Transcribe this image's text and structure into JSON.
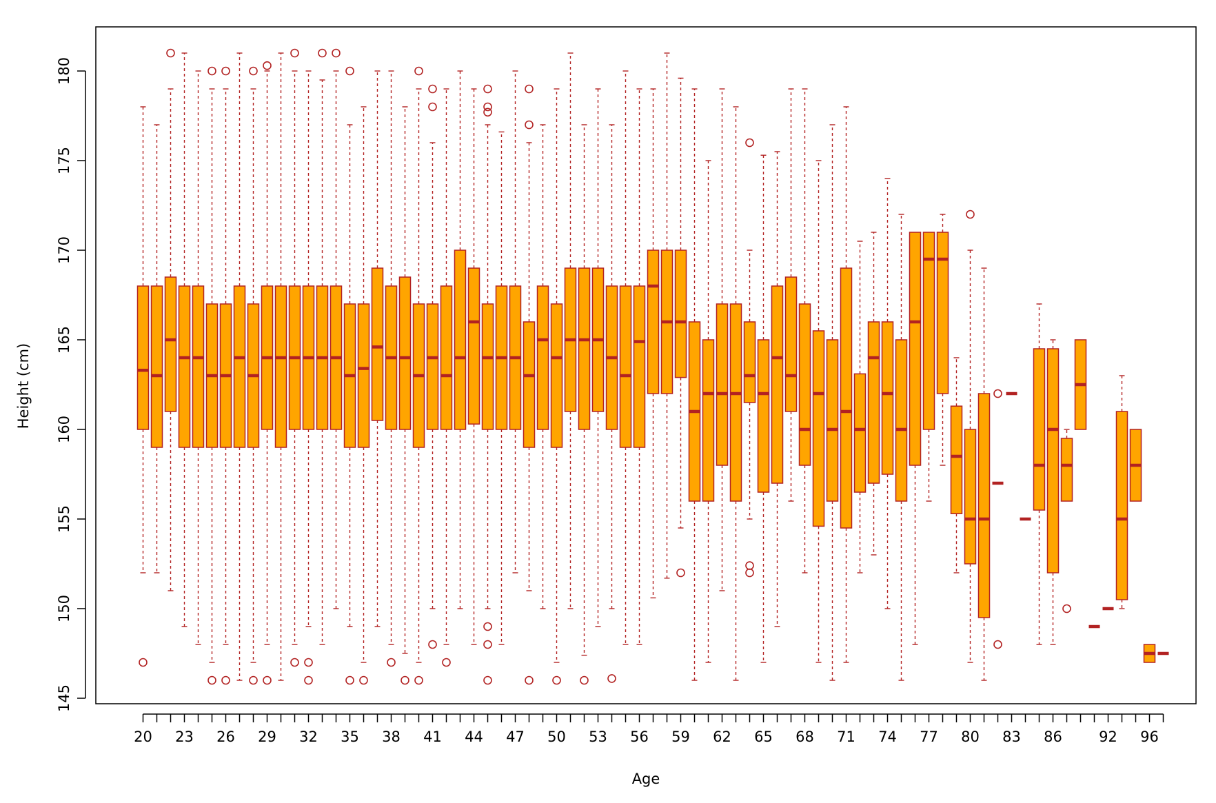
{
  "colors": {
    "box_fill": "#FFA500",
    "box_border": "#B22222",
    "median": "#B22222",
    "whisker": "#B22222",
    "outlier": "#B22222",
    "axis": "#000000"
  },
  "chart_data": {
    "type": "boxplot",
    "title": "",
    "xlabel": "Age",
    "ylabel": "Height (cm)",
    "ylim": [
      145,
      182.4
    ],
    "yticks": [
      145,
      150,
      155,
      160,
      165,
      170,
      175,
      180
    ],
    "xtick_labels": [
      "20",
      "23",
      "26",
      "29",
      "32",
      "35",
      "38",
      "41",
      "44",
      "47",
      "50",
      "53",
      "56",
      "59",
      "62",
      "65",
      "68",
      "71",
      "74",
      "77",
      "80",
      "83",
      "86",
      "92",
      "96"
    ],
    "grid": false,
    "legend": "none",
    "categories": [
      "20",
      "21",
      "22",
      "23",
      "24",
      "25",
      "26",
      "27",
      "28",
      "29",
      "30",
      "31",
      "32",
      "33",
      "34",
      "35",
      "36",
      "37",
      "38",
      "39",
      "40",
      "41",
      "42",
      "43",
      "44",
      "45",
      "46",
      "47",
      "48",
      "49",
      "50",
      "51",
      "52",
      "53",
      "54",
      "55",
      "56",
      "57",
      "58",
      "59",
      "60",
      "61",
      "62",
      "63",
      "64",
      "65",
      "66",
      "67",
      "68",
      "69",
      "70",
      "71",
      "72",
      "73",
      "74",
      "75",
      "76",
      "77",
      "78",
      "79",
      "80",
      "81",
      "82",
      "83",
      "84",
      "85",
      "86",
      "87",
      "88",
      "90",
      "92",
      "93",
      "94",
      "96",
      "97"
    ],
    "boxes": [
      {
        "age": "20",
        "whislo": 152,
        "q1": 160,
        "med": 163.3,
        "q3": 168,
        "whishi": 178,
        "fliers": [
          147
        ]
      },
      {
        "age": "21",
        "whislo": 152,
        "q1": 159,
        "med": 163,
        "q3": 168,
        "whishi": 177,
        "fliers": []
      },
      {
        "age": "22",
        "whislo": 151,
        "q1": 161,
        "med": 165,
        "q3": 168.5,
        "whishi": 179,
        "fliers": [
          181
        ]
      },
      {
        "age": "23",
        "whislo": 149,
        "q1": 159,
        "med": 164,
        "q3": 168,
        "whishi": 181,
        "fliers": []
      },
      {
        "age": "24",
        "whislo": 148,
        "q1": 159,
        "med": 164,
        "q3": 168,
        "whishi": 180,
        "fliers": []
      },
      {
        "age": "25",
        "whislo": 147,
        "q1": 159,
        "med": 163,
        "q3": 167,
        "whishi": 179,
        "fliers": [
          146,
          180
        ]
      },
      {
        "age": "26",
        "whislo": 148,
        "q1": 159,
        "med": 163,
        "q3": 167,
        "whishi": 179,
        "fliers": [
          146,
          180
        ]
      },
      {
        "age": "27",
        "whislo": 146,
        "q1": 159,
        "med": 164,
        "q3": 168,
        "whishi": 181,
        "fliers": []
      },
      {
        "age": "28",
        "whislo": 147,
        "q1": 159,
        "med": 163,
        "q3": 167,
        "whishi": 179,
        "fliers": [
          146,
          180
        ]
      },
      {
        "age": "29",
        "whislo": 148,
        "q1": 160,
        "med": 164,
        "q3": 168,
        "whishi": 180,
        "fliers": [
          146,
          180.3
        ]
      },
      {
        "age": "30",
        "whislo": 146,
        "q1": 159,
        "med": 164,
        "q3": 168,
        "whishi": 181,
        "fliers": []
      },
      {
        "age": "31",
        "whislo": 148,
        "q1": 160,
        "med": 164,
        "q3": 168,
        "whishi": 180,
        "fliers": [
          147,
          181
        ]
      },
      {
        "age": "32",
        "whislo": 149,
        "q1": 160,
        "med": 164,
        "q3": 168,
        "whishi": 180,
        "fliers": [
          146,
          147
        ]
      },
      {
        "age": "33",
        "whislo": 148,
        "q1": 160,
        "med": 164,
        "q3": 168,
        "whishi": 179.5,
        "fliers": [
          181
        ]
      },
      {
        "age": "34",
        "whislo": 150,
        "q1": 160,
        "med": 164,
        "q3": 168,
        "whishi": 180,
        "fliers": [
          181
        ]
      },
      {
        "age": "35",
        "whislo": 149,
        "q1": 159,
        "med": 163,
        "q3": 167,
        "whishi": 177,
        "fliers": [
          146,
          180
        ]
      },
      {
        "age": "36",
        "whislo": 147,
        "q1": 159,
        "med": 163.4,
        "q3": 167,
        "whishi": 178,
        "fliers": [
          146
        ]
      },
      {
        "age": "37",
        "whislo": 149,
        "q1": 160.5,
        "med": 164.6,
        "q3": 169,
        "whishi": 180,
        "fliers": []
      },
      {
        "age": "38",
        "whislo": 148,
        "q1": 160,
        "med": 164,
        "q3": 168,
        "whishi": 180,
        "fliers": [
          147
        ]
      },
      {
        "age": "39",
        "whislo": 147.5,
        "q1": 160,
        "med": 164,
        "q3": 168.5,
        "whishi": 178,
        "fliers": [
          146
        ]
      },
      {
        "age": "40",
        "whislo": 147,
        "q1": 159,
        "med": 163,
        "q3": 167,
        "whishi": 179,
        "fliers": [
          146,
          180
        ]
      },
      {
        "age": "41",
        "whislo": 150,
        "q1": 160,
        "med": 164,
        "q3": 167,
        "whishi": 176,
        "fliers": [
          148,
          178,
          179
        ]
      },
      {
        "age": "42",
        "whislo": 148,
        "q1": 160,
        "med": 163,
        "q3": 168,
        "whishi": 179,
        "fliers": [
          147
        ]
      },
      {
        "age": "43",
        "whislo": 150,
        "q1": 160,
        "med": 164,
        "q3": 170,
        "whishi": 180,
        "fliers": []
      },
      {
        "age": "44",
        "whislo": 148,
        "q1": 160.3,
        "med": 166,
        "q3": 169,
        "whishi": 179,
        "fliers": []
      },
      {
        "age": "45",
        "whislo": 150,
        "q1": 160,
        "med": 164,
        "q3": 167,
        "whishi": 177,
        "fliers": [
          146,
          148,
          149,
          177.7,
          178,
          179
        ]
      },
      {
        "age": "46",
        "whislo": 148,
        "q1": 160,
        "med": 164,
        "q3": 168,
        "whishi": 176.6,
        "fliers": []
      },
      {
        "age": "47",
        "whislo": 152,
        "q1": 160,
        "med": 164,
        "q3": 168,
        "whishi": 180,
        "fliers": []
      },
      {
        "age": "48",
        "whislo": 151,
        "q1": 159,
        "med": 163,
        "q3": 166,
        "whishi": 176,
        "fliers": [
          146,
          177,
          179
        ]
      },
      {
        "age": "49",
        "whislo": 150,
        "q1": 160,
        "med": 165,
        "q3": 168,
        "whishi": 177,
        "fliers": []
      },
      {
        "age": "50",
        "whislo": 147,
        "q1": 159,
        "med": 164,
        "q3": 167,
        "whishi": 179,
        "fliers": [
          146
        ]
      },
      {
        "age": "51",
        "whislo": 150,
        "q1": 161,
        "med": 165,
        "q3": 169,
        "whishi": 181,
        "fliers": []
      },
      {
        "age": "52",
        "whislo": 147.4,
        "q1": 160,
        "med": 165,
        "q3": 169,
        "whishi": 177,
        "fliers": [
          146
        ]
      },
      {
        "age": "53",
        "whislo": 149,
        "q1": 161,
        "med": 165,
        "q3": 169,
        "whishi": 179,
        "fliers": []
      },
      {
        "age": "54",
        "whislo": 150,
        "q1": 160,
        "med": 164,
        "q3": 168,
        "whishi": 177,
        "fliers": [
          146.1
        ]
      },
      {
        "age": "55",
        "whislo": 148,
        "q1": 159,
        "med": 163,
        "q3": 168,
        "whishi": 180,
        "fliers": []
      },
      {
        "age": "56",
        "whislo": 148,
        "q1": 159,
        "med": 164.9,
        "q3": 168,
        "whishi": 179,
        "fliers": []
      },
      {
        "age": "57",
        "whislo": 150.6,
        "q1": 162,
        "med": 168,
        "q3": 170,
        "whishi": 179,
        "fliers": []
      },
      {
        "age": "58",
        "whislo": 151.7,
        "q1": 162,
        "med": 166,
        "q3": 170,
        "whishi": 181,
        "fliers": []
      },
      {
        "age": "59",
        "whislo": 154.5,
        "q1": 162.9,
        "med": 166,
        "q3": 170,
        "whishi": 179.6,
        "fliers": [
          152
        ]
      },
      {
        "age": "60",
        "whislo": 146,
        "q1": 156,
        "med": 161,
        "q3": 166,
        "whishi": 179,
        "fliers": []
      },
      {
        "age": "61",
        "whislo": 147,
        "q1": 156,
        "med": 162,
        "q3": 165,
        "whishi": 175,
        "fliers": []
      },
      {
        "age": "62",
        "whislo": 151,
        "q1": 158,
        "med": 162,
        "q3": 167,
        "whishi": 179,
        "fliers": []
      },
      {
        "age": "63",
        "whislo": 146,
        "q1": 156,
        "med": 162,
        "q3": 167,
        "whishi": 178,
        "fliers": []
      },
      {
        "age": "64",
        "whislo": 155,
        "q1": 161.5,
        "med": 163,
        "q3": 166,
        "whishi": 170,
        "fliers": [
          152,
          152.4,
          176
        ]
      },
      {
        "age": "65",
        "whislo": 147,
        "q1": 156.5,
        "med": 162,
        "q3": 165,
        "whishi": 175.3,
        "fliers": []
      },
      {
        "age": "66",
        "whislo": 149,
        "q1": 157,
        "med": 164,
        "q3": 168,
        "whishi": 175.5,
        "fliers": []
      },
      {
        "age": "67",
        "whislo": 156,
        "q1": 161,
        "med": 163,
        "q3": 168.5,
        "whishi": 179,
        "fliers": []
      },
      {
        "age": "68",
        "whislo": 152,
        "q1": 158,
        "med": 160,
        "q3": 167,
        "whishi": 179,
        "fliers": []
      },
      {
        "age": "69",
        "whislo": 147,
        "q1": 154.6,
        "med": 162,
        "q3": 165.5,
        "whishi": 175,
        "fliers": []
      },
      {
        "age": "70",
        "whislo": 146,
        "q1": 156,
        "med": 160,
        "q3": 165,
        "whishi": 177,
        "fliers": []
      },
      {
        "age": "71",
        "whislo": 147,
        "q1": 154.5,
        "med": 161,
        "q3": 169,
        "whishi": 178,
        "fliers": []
      },
      {
        "age": "72",
        "whislo": 152,
        "q1": 156.5,
        "med": 160,
        "q3": 163.1,
        "whishi": 170.5,
        "fliers": []
      },
      {
        "age": "73",
        "whislo": 153,
        "q1": 157,
        "med": 164,
        "q3": 166,
        "whishi": 171,
        "fliers": []
      },
      {
        "age": "74",
        "whislo": 150,
        "q1": 157.5,
        "med": 162,
        "q3": 166,
        "whishi": 174,
        "fliers": []
      },
      {
        "age": "75",
        "whislo": 146,
        "q1": 156,
        "med": 160,
        "q3": 165,
        "whishi": 172,
        "fliers": []
      },
      {
        "age": "76",
        "whislo": 148,
        "q1": 158,
        "med": 166,
        "q3": 171,
        "whishi": 171,
        "fliers": []
      },
      {
        "age": "77",
        "whislo": 156,
        "q1": 160,
        "med": 169.5,
        "q3": 171,
        "whishi": 171,
        "fliers": []
      },
      {
        "age": "78",
        "whislo": 158,
        "q1": 162,
        "med": 169.5,
        "q3": 171,
        "whishi": 172,
        "fliers": []
      },
      {
        "age": "79",
        "whislo": 152,
        "q1": 155.3,
        "med": 158.5,
        "q3": 161.3,
        "whishi": 164,
        "fliers": []
      },
      {
        "age": "80",
        "whislo": 147,
        "q1": 152.5,
        "med": 155,
        "q3": 160,
        "whishi": 170,
        "fliers": [
          172
        ]
      },
      {
        "age": "81",
        "whislo": 146,
        "q1": 149.5,
        "med": 155,
        "q3": 162,
        "whishi": 169,
        "fliers": []
      },
      {
        "age": "82",
        "whislo": 157,
        "q1": 157,
        "med": 157,
        "q3": 157,
        "whishi": 157,
        "fliers": [
          148,
          162
        ]
      },
      {
        "age": "83",
        "whislo": 162,
        "q1": 162,
        "med": 162,
        "q3": 162,
        "whishi": 162,
        "fliers": []
      },
      {
        "age": "84",
        "whislo": 155,
        "q1": 155,
        "med": 155,
        "q3": 155,
        "whishi": 155,
        "fliers": []
      },
      {
        "age": "85",
        "whislo": 148,
        "q1": 155.5,
        "med": 158,
        "q3": 164.5,
        "whishi": 167,
        "fliers": []
      },
      {
        "age": "86",
        "whislo": 148,
        "q1": 152,
        "med": 160,
        "q3": 164.5,
        "whishi": 165,
        "fliers": []
      },
      {
        "age": "87",
        "whislo": 156,
        "q1": 156,
        "med": 158,
        "q3": 159.5,
        "whishi": 160,
        "fliers": [
          150
        ]
      },
      {
        "age": "88",
        "whislo": 160,
        "q1": 160,
        "med": 162.5,
        "q3": 165,
        "whishi": 165,
        "fliers": []
      },
      {
        "age": "90",
        "whislo": 149,
        "q1": 149,
        "med": 149,
        "q3": 149,
        "whishi": 149,
        "fliers": []
      },
      {
        "age": "92",
        "whislo": 150,
        "q1": 150,
        "med": 150,
        "q3": 150,
        "whishi": 150,
        "fliers": []
      },
      {
        "age": "93",
        "whislo": 150,
        "q1": 150.5,
        "med": 155,
        "q3": 161,
        "whishi": 163,
        "fliers": []
      },
      {
        "age": "94",
        "whislo": 156,
        "q1": 156,
        "med": 158,
        "q3": 160,
        "whishi": 160,
        "fliers": []
      },
      {
        "age": "96",
        "whislo": 147,
        "q1": 147,
        "med": 147.5,
        "q3": 148,
        "whishi": 148,
        "fliers": []
      },
      {
        "age": "97",
        "whislo": 147.5,
        "q1": 147.5,
        "med": 147.5,
        "q3": 147.5,
        "whishi": 147.5,
        "fliers": []
      }
    ]
  }
}
